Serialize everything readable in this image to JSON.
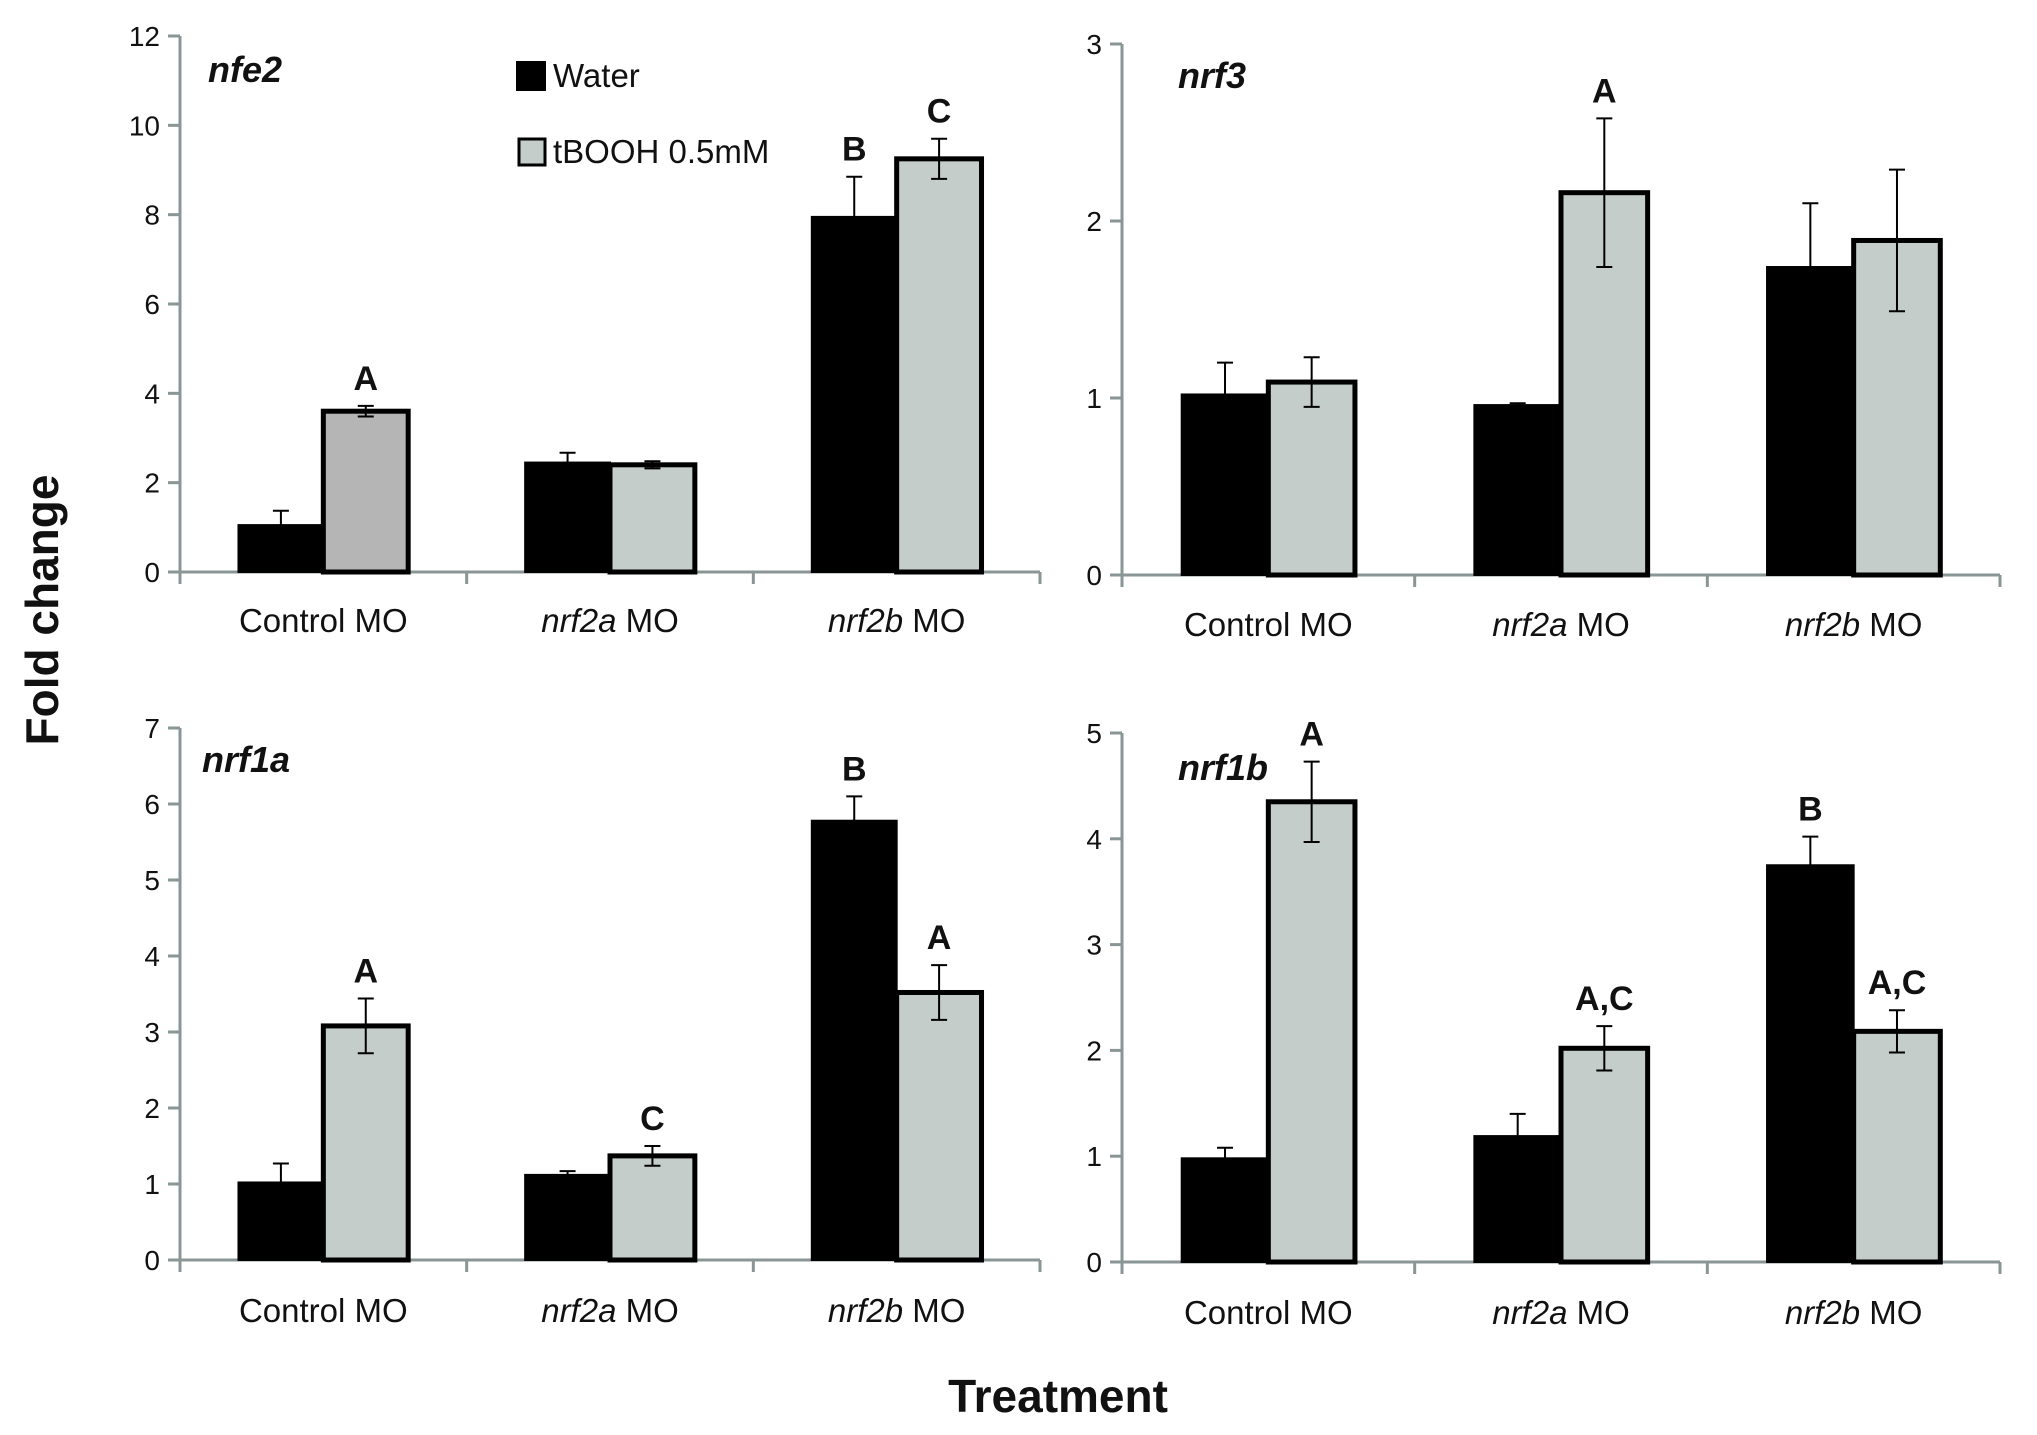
{
  "figure": {
    "ylabel": "Fold change",
    "xlabel": "Treatment"
  },
  "legend": {
    "items": [
      {
        "label": "Water",
        "color": "#000000"
      },
      {
        "label": "tBOOH 0.5mM",
        "color": "#c5cdcb"
      }
    ]
  },
  "colors": {
    "water": "#000000",
    "tbooh": "#c5cdcb",
    "tbooh_nfe2_control": "#b5b5b5",
    "axis": "#8a9595"
  },
  "chart_data": [
    {
      "type": "bar",
      "title": "nfe2",
      "categories": [
        {
          "prefix": "Control MO",
          "suffix": "",
          "italic": false
        },
        {
          "prefix": "nrf2a",
          "suffix": " MO",
          "italic": true
        },
        {
          "prefix": "nrf2b",
          "suffix": " MO",
          "italic": true
        }
      ],
      "yticks": [
        0,
        2,
        4,
        6,
        8,
        10,
        12
      ],
      "ylim": [
        0,
        12
      ],
      "series": [
        {
          "name": "Water",
          "values": [
            1.05,
            2.45,
            7.95
          ],
          "errors": [
            0.32,
            0.22,
            0.9
          ],
          "labels": [
            "",
            "",
            "B"
          ]
        },
        {
          "name": "tBOOH 0.5mM",
          "values": [
            3.6,
            2.4,
            9.25
          ],
          "errors": [
            0.12,
            0.08,
            0.45
          ],
          "labels": [
            "A",
            "",
            "C"
          ]
        }
      ],
      "legend": "top-left"
    },
    {
      "type": "bar",
      "title": "nrf3",
      "categories": [
        {
          "prefix": "Control MO",
          "suffix": "",
          "italic": false
        },
        {
          "prefix": "nrf2a",
          "suffix": " MO",
          "italic": true
        },
        {
          "prefix": "nrf2b",
          "suffix": " MO",
          "italic": true
        }
      ],
      "yticks": [
        0,
        1,
        2,
        3
      ],
      "ylim": [
        0,
        3
      ],
      "series": [
        {
          "name": "Water",
          "values": [
            1.02,
            0.96,
            1.74
          ],
          "errors": [
            0.18,
            0.01,
            0.36
          ],
          "labels": [
            "",
            "",
            ""
          ]
        },
        {
          "name": "tBOOH 0.5mM",
          "values": [
            1.09,
            2.16,
            1.89
          ],
          "errors": [
            0.14,
            0.42,
            0.4
          ],
          "labels": [
            "",
            "A",
            ""
          ]
        }
      ]
    },
    {
      "type": "bar",
      "title": "nrf1a",
      "categories": [
        {
          "prefix": "Control MO",
          "suffix": "",
          "italic": false
        },
        {
          "prefix": "nrf2a",
          "suffix": " MO",
          "italic": true
        },
        {
          "prefix": "nrf2b",
          "suffix": " MO",
          "italic": true
        }
      ],
      "yticks": [
        0,
        1,
        2,
        3,
        4,
        5,
        6,
        7
      ],
      "ylim": [
        0,
        7
      ],
      "series": [
        {
          "name": "Water",
          "values": [
            1.02,
            1.12,
            5.78
          ],
          "errors": [
            0.25,
            0.05,
            0.32
          ],
          "labels": [
            "",
            "",
            "B"
          ]
        },
        {
          "name": "tBOOH 0.5mM",
          "values": [
            3.08,
            1.37,
            3.52
          ],
          "errors": [
            0.36,
            0.13,
            0.36
          ],
          "labels": [
            "A",
            "C",
            "A"
          ]
        }
      ]
    },
    {
      "type": "bar",
      "title": "nrf1b",
      "categories": [
        {
          "prefix": "Control MO",
          "suffix": "",
          "italic": false
        },
        {
          "prefix": "nrf2a",
          "suffix": " MO",
          "italic": true
        },
        {
          "prefix": "nrf2b",
          "suffix": " MO",
          "italic": true
        }
      ],
      "yticks": [
        0,
        1,
        2,
        3,
        4,
        5
      ],
      "ylim": [
        0,
        5
      ],
      "series": [
        {
          "name": "Water",
          "values": [
            0.98,
            1.19,
            3.75
          ],
          "errors": [
            0.1,
            0.21,
            0.27
          ],
          "labels": [
            "",
            "",
            "B"
          ]
        },
        {
          "name": "tBOOH 0.5mM",
          "values": [
            4.35,
            2.02,
            2.18
          ],
          "errors": [
            0.38,
            0.21,
            0.2
          ],
          "labels": [
            "A",
            "A,C",
            "A,C"
          ]
        }
      ]
    }
  ]
}
